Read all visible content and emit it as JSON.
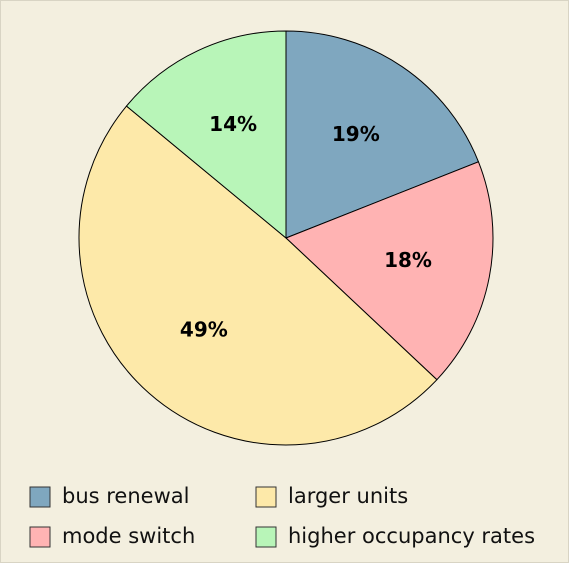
{
  "chart_data": {
    "type": "pie",
    "categories": [
      "bus renewal",
      "mode switch",
      "larger units",
      "higher occupancy rates"
    ],
    "values": [
      19,
      18,
      49,
      14
    ],
    "value_labels": [
      "19%",
      "18%",
      "49%",
      "14%"
    ],
    "colors": [
      "#7fa7bf",
      "#ffb3b3",
      "#fde9a9",
      "#b8f5b8"
    ],
    "start_angle": 90,
    "direction": "clockwise"
  }
}
